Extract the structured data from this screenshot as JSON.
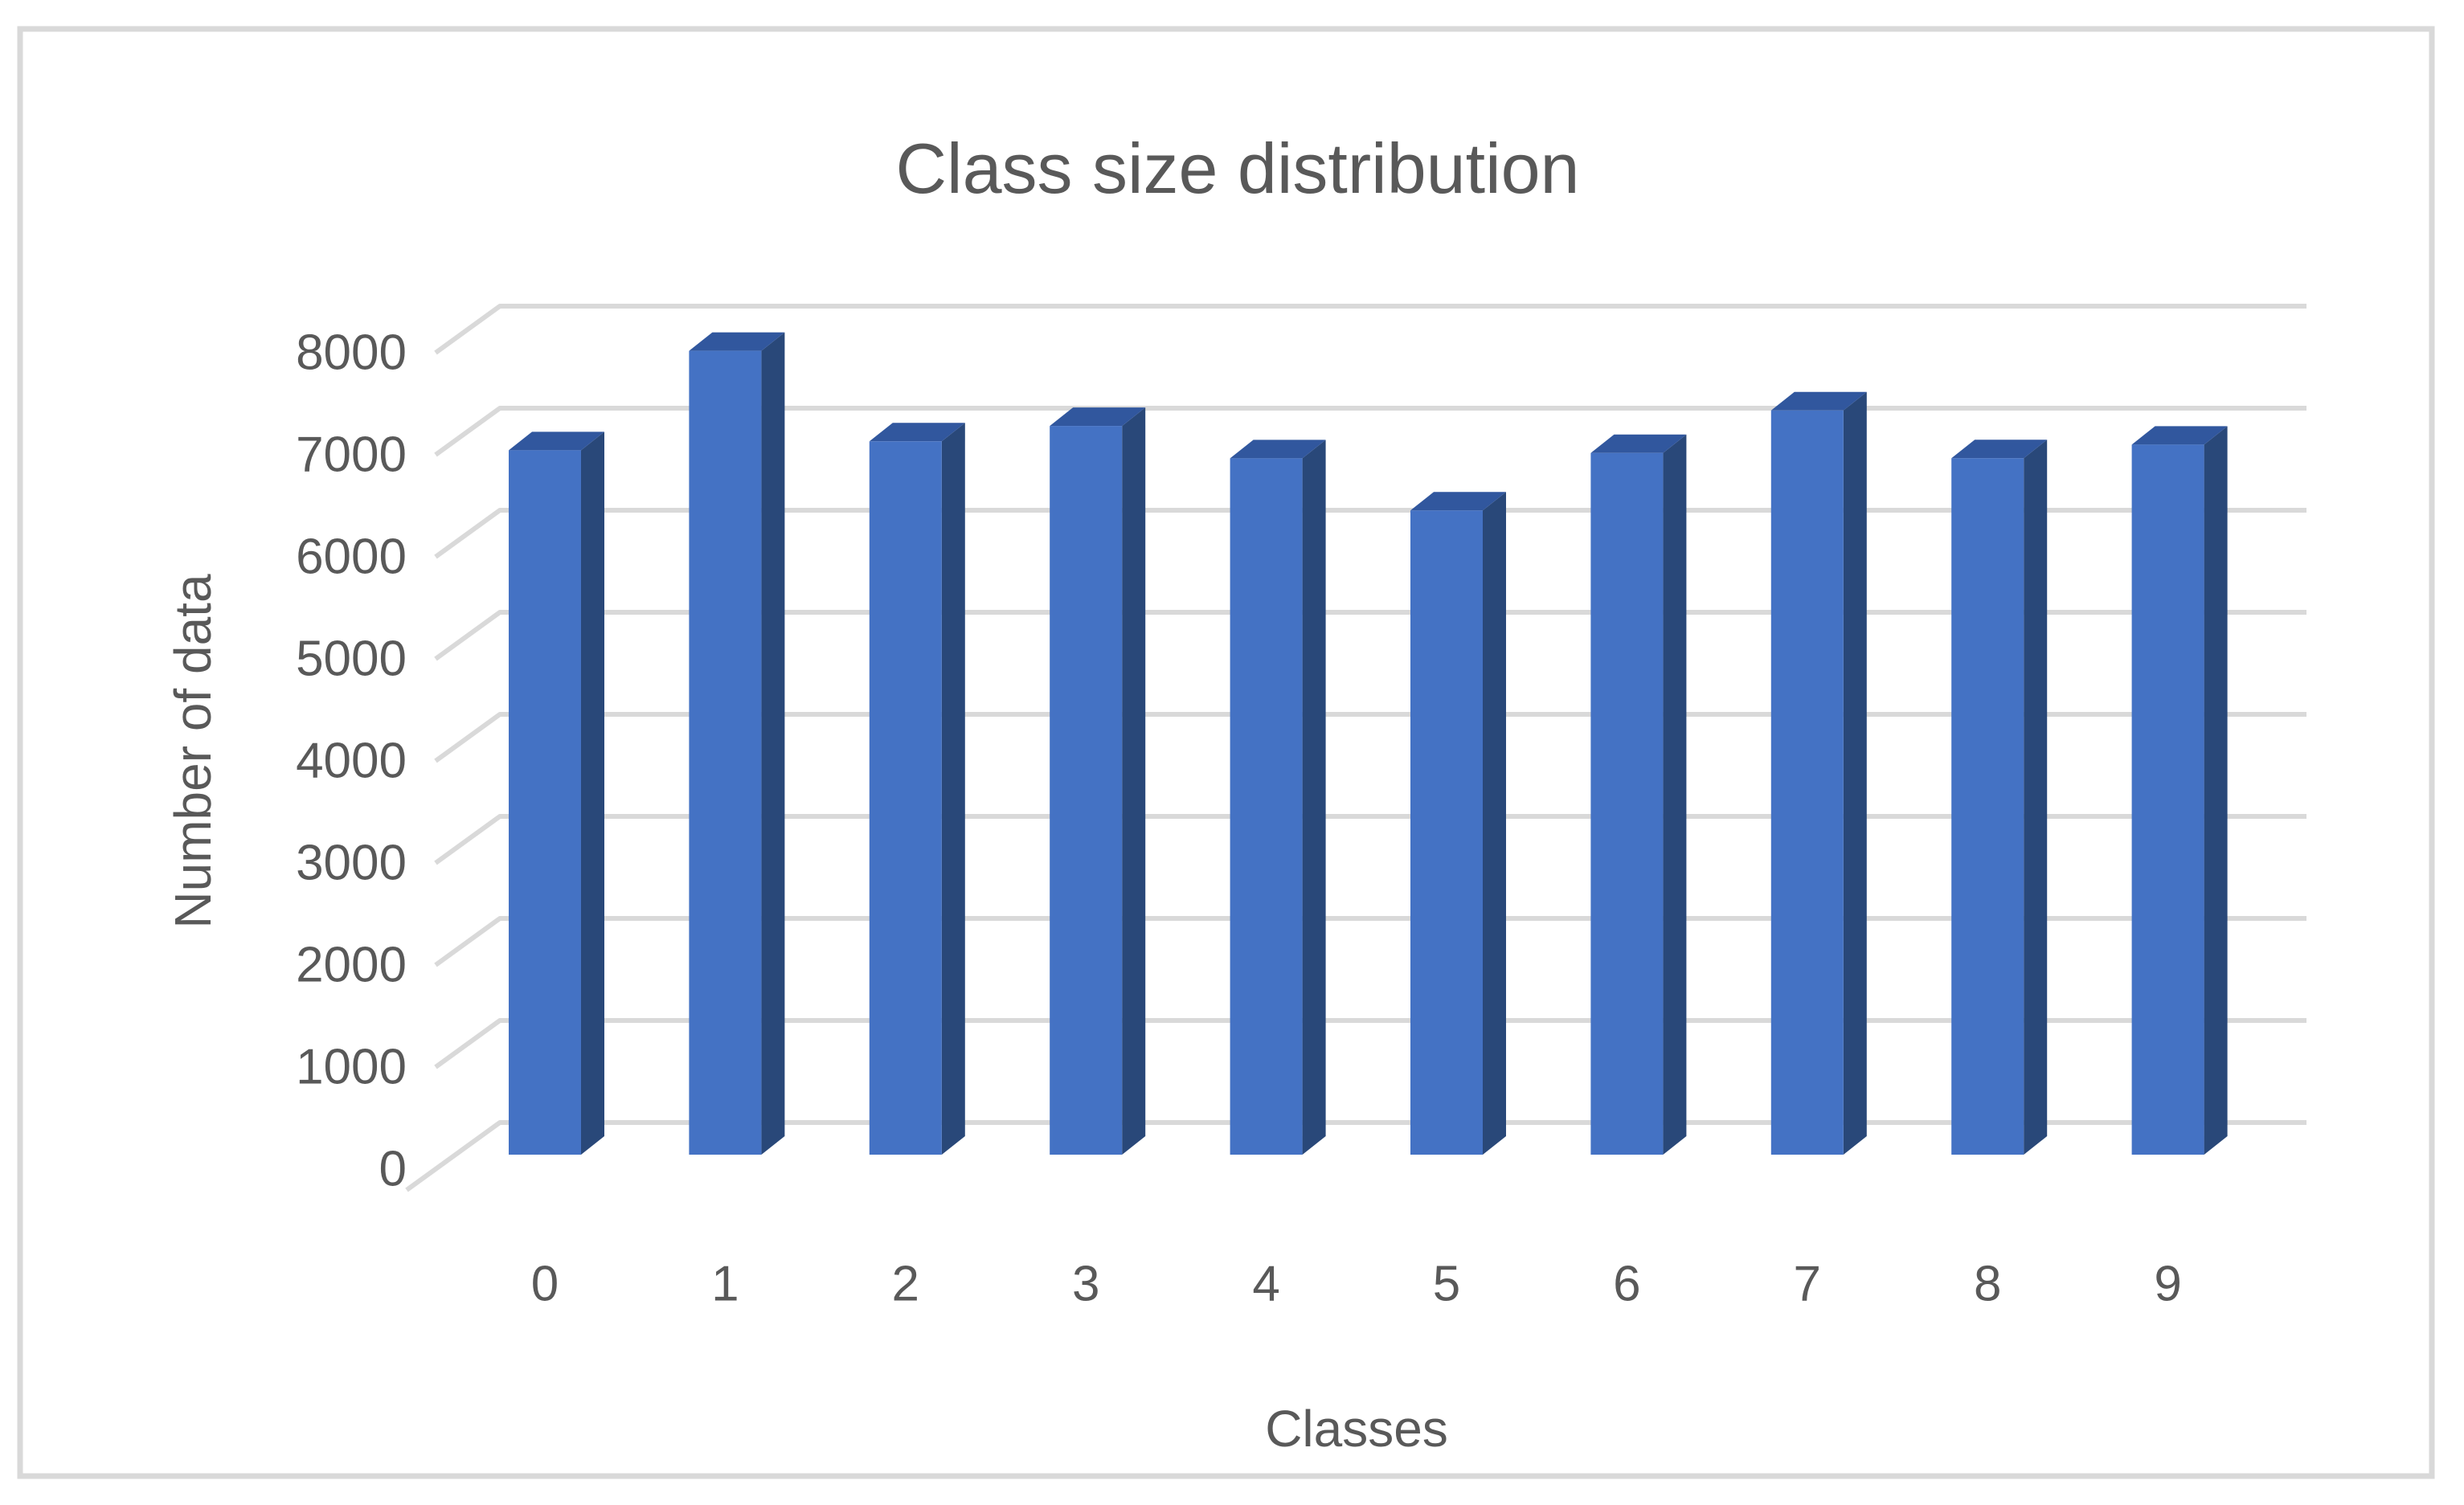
{
  "frame": {
    "background": "#FFFFFF",
    "border_color": "#D9D9D9"
  },
  "chart_data": {
    "type": "bar",
    "variant": "3d-clustered-column",
    "title": "Class size distribution",
    "xlabel": "Classes",
    "ylabel": "Number of data",
    "categories": [
      "0",
      "1",
      "2",
      "3",
      "4",
      "5",
      "6",
      "7",
      "8",
      "9"
    ],
    "values": [
      6903,
      7877,
      6990,
      7141,
      6824,
      6313,
      6876,
      7293,
      6825,
      6958
    ],
    "ylim": [
      0,
      8000
    ],
    "ytick_step": 1000,
    "ytick_labels": [
      "0",
      "1000",
      "2000",
      "3000",
      "4000",
      "5000",
      "6000",
      "7000",
      "8000"
    ],
    "grid": true,
    "legend": false,
    "colors": {
      "bar_front": "#4472C4",
      "bar_top": "#31579E",
      "bar_side": "#294879",
      "gridline": "#D9D9D9",
      "text": "#595959"
    }
  }
}
